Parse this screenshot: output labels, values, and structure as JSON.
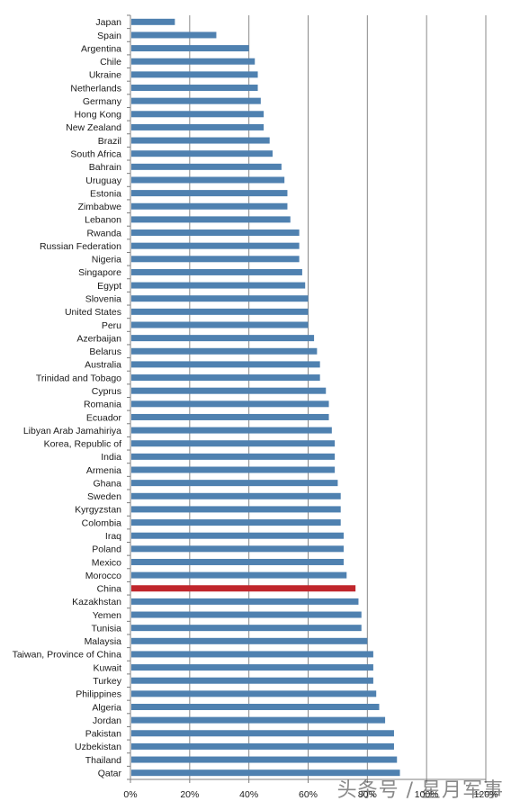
{
  "chart_data": {
    "type": "bar",
    "orientation": "horizontal",
    "categories": [
      "Japan",
      "Spain",
      "Argentina",
      "Chile",
      "Ukraine",
      "Netherlands",
      "Germany",
      "Hong Kong",
      "New Zealand",
      "Brazil",
      "South Africa",
      "Bahrain",
      "Uruguay",
      "Estonia",
      "Zimbabwe",
      "Lebanon",
      "Rwanda",
      "Russian Federation",
      "Nigeria",
      "Singapore",
      "Egypt",
      "Slovenia",
      "United States",
      "Peru",
      "Azerbaijan",
      "Belarus",
      "Australia",
      "Trinidad and Tobago",
      "Cyprus",
      "Romania",
      "Ecuador",
      "Libyan Arab Jamahiriya",
      "Korea, Republic of",
      "India",
      "Armenia",
      "Ghana",
      "Sweden",
      "Kyrgyzstan",
      "Colombia",
      "Iraq",
      "Poland",
      "Mexico",
      "Morocco",
      "China",
      "Kazakhstan",
      "Yemen",
      "Tunisia",
      "Malaysia",
      "Taiwan, Province of China",
      "Kuwait",
      "Turkey",
      "Philippines",
      "Algeria",
      "Jordan",
      "Pakistan",
      "Uzbekistan",
      "Thailand",
      "Qatar"
    ],
    "values": [
      15,
      29,
      40,
      42,
      43,
      43,
      44,
      45,
      45,
      47,
      48,
      51,
      52,
      53,
      53,
      54,
      57,
      57,
      57,
      58,
      59,
      60,
      60,
      60,
      62,
      63,
      64,
      64,
      66,
      67,
      67,
      68,
      69,
      69,
      69,
      70,
      71,
      71,
      71,
      72,
      72,
      72,
      73,
      76,
      77,
      78,
      78,
      80,
      82,
      82,
      82,
      83,
      84,
      86,
      89,
      89,
      90,
      91
    ],
    "highlight": "China",
    "xticks": [
      "0%",
      "20%",
      "40%",
      "60%",
      "80%",
      "100%",
      "120%"
    ],
    "xlim": [
      0,
      120
    ],
    "grid": true,
    "colors": {
      "bar": "#4f81b0",
      "highlight": "#c0262c",
      "grid": "#8a8a8a",
      "axis": "#7f7f7f"
    }
  },
  "watermark": "头条号 / 星月军事"
}
